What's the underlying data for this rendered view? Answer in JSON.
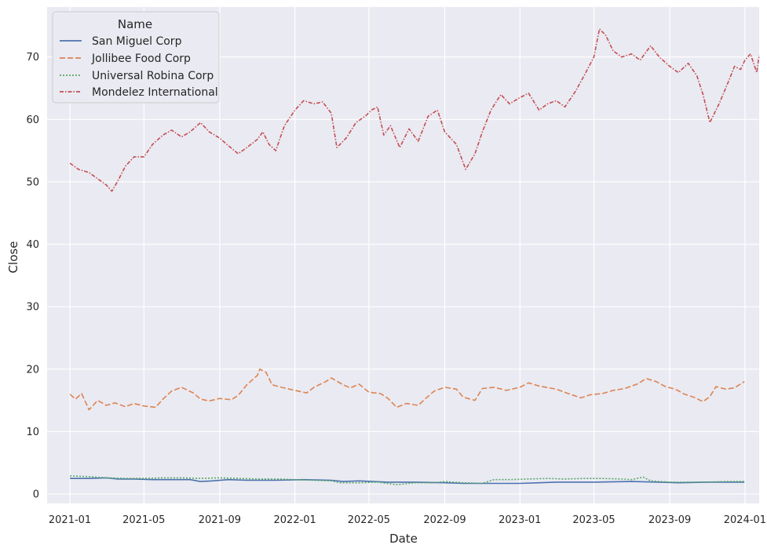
{
  "chart_data": {
    "type": "line",
    "title": "",
    "xlabel": "Date",
    "ylabel": "Close",
    "x_range": [
      "2020-11-25",
      "2024-01-24"
    ],
    "ylim": [
      -1.5,
      78
    ],
    "grid": true,
    "background": "#eaeaf2",
    "legend": {
      "title": "Name",
      "placement": "top-left"
    },
    "x_ticks": [
      "2021-01",
      "2021-05",
      "2021-09",
      "2022-01",
      "2022-05",
      "2022-09",
      "2023-01",
      "2023-05",
      "2023-09",
      "2024-01"
    ],
    "y_ticks": [
      0,
      10,
      20,
      30,
      40,
      50,
      60,
      70
    ],
    "series": [
      {
        "name": "San Miguel Corp",
        "color": "#4c72b0",
        "dash": "solid",
        "points": [
          [
            "2021-01-01",
            2.5
          ],
          [
            "2021-02-01",
            2.5
          ],
          [
            "2021-03-01",
            2.6
          ],
          [
            "2021-03-20",
            2.4
          ],
          [
            "2021-04-15",
            2.4
          ],
          [
            "2021-05-15",
            2.3
          ],
          [
            "2021-06-15",
            2.3
          ],
          [
            "2021-07-15",
            2.3
          ],
          [
            "2021-08-01",
            2.0
          ],
          [
            "2021-08-20",
            2.1
          ],
          [
            "2021-09-15",
            2.3
          ],
          [
            "2021-10-15",
            2.2
          ],
          [
            "2021-12-01",
            2.2
          ],
          [
            "2022-01-15",
            2.3
          ],
          [
            "2022-03-01",
            2.2
          ],
          [
            "2022-03-20",
            2.0
          ],
          [
            "2022-04-15",
            2.1
          ],
          [
            "2022-06-01",
            1.9
          ],
          [
            "2022-07-15",
            1.9
          ],
          [
            "2022-09-01",
            1.8
          ],
          [
            "2022-10-01",
            1.7
          ],
          [
            "2022-11-15",
            1.7
          ],
          [
            "2023-01-01",
            1.7
          ],
          [
            "2023-02-01",
            1.8
          ],
          [
            "2023-03-01",
            1.9
          ],
          [
            "2023-05-01",
            1.9
          ],
          [
            "2023-07-01",
            2.0
          ],
          [
            "2023-08-15",
            1.9
          ],
          [
            "2023-09-15",
            1.8
          ],
          [
            "2023-11-01",
            1.9
          ],
          [
            "2023-12-31",
            1.9
          ]
        ]
      },
      {
        "name": "Jollibee Food Corp",
        "color": "#dd8452",
        "dash": "dashed",
        "points": [
          [
            "2021-01-01",
            16.0
          ],
          [
            "2021-01-10",
            15.2
          ],
          [
            "2021-01-20",
            16.1
          ],
          [
            "2021-02-01",
            13.5
          ],
          [
            "2021-02-15",
            15.0
          ],
          [
            "2021-03-01",
            14.2
          ],
          [
            "2021-03-15",
            14.6
          ],
          [
            "2021-04-01",
            14.0
          ],
          [
            "2021-04-15",
            14.5
          ],
          [
            "2021-05-01",
            14.1
          ],
          [
            "2021-05-20",
            13.9
          ],
          [
            "2021-06-01",
            15.2
          ],
          [
            "2021-06-15",
            16.5
          ],
          [
            "2021-07-01",
            17.1
          ],
          [
            "2021-07-20",
            16.2
          ],
          [
            "2021-08-01",
            15.2
          ],
          [
            "2021-08-15",
            14.9
          ],
          [
            "2021-09-01",
            15.3
          ],
          [
            "2021-09-20",
            15.1
          ],
          [
            "2021-10-01",
            15.8
          ],
          [
            "2021-10-15",
            17.5
          ],
          [
            "2021-11-01",
            19.0
          ],
          [
            "2021-11-05",
            20.0
          ],
          [
            "2021-11-15",
            19.5
          ],
          [
            "2021-11-25",
            17.5
          ],
          [
            "2021-12-10",
            17.1
          ],
          [
            "2022-01-01",
            16.6
          ],
          [
            "2022-01-20",
            16.2
          ],
          [
            "2022-02-01",
            17.1
          ],
          [
            "2022-02-20",
            18.0
          ],
          [
            "2022-03-01",
            18.6
          ],
          [
            "2022-03-20",
            17.5
          ],
          [
            "2022-04-01",
            17.0
          ],
          [
            "2022-04-15",
            17.6
          ],
          [
            "2022-05-01",
            16.3
          ],
          [
            "2022-05-20",
            16.1
          ],
          [
            "2022-06-01",
            15.3
          ],
          [
            "2022-06-15",
            13.9
          ],
          [
            "2022-07-01",
            14.5
          ],
          [
            "2022-07-20",
            14.2
          ],
          [
            "2022-08-01",
            15.3
          ],
          [
            "2022-08-15",
            16.5
          ],
          [
            "2022-09-01",
            17.1
          ],
          [
            "2022-09-20",
            16.8
          ],
          [
            "2022-10-01",
            15.5
          ],
          [
            "2022-10-20",
            15.0
          ],
          [
            "2022-11-01",
            16.9
          ],
          [
            "2022-11-20",
            17.1
          ],
          [
            "2022-12-10",
            16.6
          ],
          [
            "2023-01-01",
            17.1
          ],
          [
            "2023-01-15",
            17.8
          ],
          [
            "2023-02-01",
            17.3
          ],
          [
            "2023-03-01",
            16.8
          ],
          [
            "2023-03-20",
            16.1
          ],
          [
            "2023-04-10",
            15.4
          ],
          [
            "2023-04-25",
            15.9
          ],
          [
            "2023-05-15",
            16.1
          ],
          [
            "2023-06-01",
            16.6
          ],
          [
            "2023-06-20",
            16.9
          ],
          [
            "2023-07-10",
            17.6
          ],
          [
            "2023-07-25",
            18.5
          ],
          [
            "2023-08-10",
            18.0
          ],
          [
            "2023-08-25",
            17.2
          ],
          [
            "2023-09-10",
            16.8
          ],
          [
            "2023-09-25",
            16.0
          ],
          [
            "2023-10-10",
            15.5
          ],
          [
            "2023-10-25",
            14.8
          ],
          [
            "2023-11-05",
            15.6
          ],
          [
            "2023-11-15",
            17.2
          ],
          [
            "2023-12-01",
            16.8
          ],
          [
            "2023-12-15",
            17.0
          ],
          [
            "2023-12-31",
            18.0
          ]
        ]
      },
      {
        "name": "Universal Robina Corp",
        "color": "#55a868",
        "dash": "dotted",
        "points": [
          [
            "2021-01-01",
            2.9
          ],
          [
            "2021-02-01",
            2.8
          ],
          [
            "2021-03-01",
            2.6
          ],
          [
            "2021-04-01",
            2.5
          ],
          [
            "2021-05-01",
            2.5
          ],
          [
            "2021-06-01",
            2.6
          ],
          [
            "2021-07-01",
            2.6
          ],
          [
            "2021-08-01",
            2.5
          ],
          [
            "2021-09-01",
            2.6
          ],
          [
            "2021-10-01",
            2.5
          ],
          [
            "2021-11-01",
            2.4
          ],
          [
            "2021-12-01",
            2.4
          ],
          [
            "2022-01-01",
            2.3
          ],
          [
            "2022-02-01",
            2.2
          ],
          [
            "2022-03-01",
            2.1
          ],
          [
            "2022-03-15",
            1.8
          ],
          [
            "2022-04-15",
            1.8
          ],
          [
            "2022-05-15",
            1.9
          ],
          [
            "2022-06-15",
            1.5
          ],
          [
            "2022-07-15",
            1.8
          ],
          [
            "2022-08-15",
            1.8
          ],
          [
            "2022-09-01",
            2.0
          ],
          [
            "2022-10-01",
            1.8
          ],
          [
            "2022-11-01",
            1.7
          ],
          [
            "2022-11-20",
            2.3
          ],
          [
            "2022-12-15",
            2.3
          ],
          [
            "2023-01-15",
            2.4
          ],
          [
            "2023-02-15",
            2.5
          ],
          [
            "2023-03-15",
            2.4
          ],
          [
            "2023-04-15",
            2.5
          ],
          [
            "2023-05-15",
            2.5
          ],
          [
            "2023-06-15",
            2.4
          ],
          [
            "2023-07-01",
            2.3
          ],
          [
            "2023-07-20",
            2.7
          ],
          [
            "2023-08-01",
            2.1
          ],
          [
            "2023-09-01",
            1.9
          ],
          [
            "2023-10-01",
            1.9
          ],
          [
            "2023-11-01",
            1.9
          ],
          [
            "2023-12-01",
            2.0
          ],
          [
            "2023-12-31",
            2.0
          ]
        ]
      },
      {
        "name": "Mondelez International",
        "color": "#c44e52",
        "dash": "dashdot",
        "points": [
          [
            "2021-01-01",
            53.0
          ],
          [
            "2021-01-15",
            52.0
          ],
          [
            "2021-02-01",
            51.5
          ],
          [
            "2021-02-15",
            50.5
          ],
          [
            "2021-03-01",
            49.5
          ],
          [
            "2021-03-10",
            48.5
          ],
          [
            "2021-03-20",
            50.2
          ],
          [
            "2021-04-01",
            52.5
          ],
          [
            "2021-04-15",
            54.0
          ],
          [
            "2021-05-01",
            54.0
          ],
          [
            "2021-05-15",
            56.0
          ],
          [
            "2021-06-01",
            57.5
          ],
          [
            "2021-06-15",
            58.3
          ],
          [
            "2021-07-01",
            57.2
          ],
          [
            "2021-07-15",
            58.0
          ],
          [
            "2021-08-01",
            59.5
          ],
          [
            "2021-08-15",
            58.0
          ],
          [
            "2021-09-01",
            57.0
          ],
          [
            "2021-09-15",
            55.8
          ],
          [
            "2021-10-01",
            54.5
          ],
          [
            "2021-10-15",
            55.5
          ],
          [
            "2021-11-01",
            56.8
          ],
          [
            "2021-11-10",
            58.0
          ],
          [
            "2021-11-20",
            56.0
          ],
          [
            "2021-12-01",
            55.0
          ],
          [
            "2021-12-15",
            59.0
          ],
          [
            "2022-01-01",
            61.5
          ],
          [
            "2022-01-15",
            63.0
          ],
          [
            "2022-02-01",
            62.5
          ],
          [
            "2022-02-15",
            62.8
          ],
          [
            "2022-03-01",
            61.0
          ],
          [
            "2022-03-10",
            55.5
          ],
          [
            "2022-03-25",
            57.0
          ],
          [
            "2022-04-10",
            59.5
          ],
          [
            "2022-04-25",
            60.5
          ],
          [
            "2022-05-05",
            61.5
          ],
          [
            "2022-05-15",
            62.0
          ],
          [
            "2022-05-25",
            57.5
          ],
          [
            "2022-06-05",
            59.0
          ],
          [
            "2022-06-20",
            55.5
          ],
          [
            "2022-07-05",
            58.5
          ],
          [
            "2022-07-20",
            56.5
          ],
          [
            "2022-08-05",
            60.5
          ],
          [
            "2022-08-20",
            61.5
          ],
          [
            "2022-09-01",
            58.0
          ],
          [
            "2022-09-20",
            56.0
          ],
          [
            "2022-10-05",
            52.0
          ],
          [
            "2022-10-20",
            54.5
          ],
          [
            "2022-11-01",
            58.0
          ],
          [
            "2022-11-15",
            61.5
          ],
          [
            "2022-12-01",
            64.0
          ],
          [
            "2022-12-15",
            62.5
          ],
          [
            "2023-01-01",
            63.5
          ],
          [
            "2023-01-15",
            64.2
          ],
          [
            "2023-02-01",
            61.5
          ],
          [
            "2023-02-15",
            62.5
          ],
          [
            "2023-03-01",
            63.0
          ],
          [
            "2023-03-15",
            62.0
          ],
          [
            "2023-04-01",
            64.5
          ],
          [
            "2023-04-15",
            67.0
          ],
          [
            "2023-05-01",
            70.0
          ],
          [
            "2023-05-10",
            74.5
          ],
          [
            "2023-05-20",
            73.5
          ],
          [
            "2023-06-01",
            71.0
          ],
          [
            "2023-06-15",
            70.0
          ],
          [
            "2023-07-01",
            70.5
          ],
          [
            "2023-07-15",
            69.5
          ],
          [
            "2023-08-01",
            71.8
          ],
          [
            "2023-08-15",
            70.0
          ],
          [
            "2023-09-01",
            68.5
          ],
          [
            "2023-09-15",
            67.5
          ],
          [
            "2023-10-01",
            69.0
          ],
          [
            "2023-10-15",
            67.0
          ],
          [
            "2023-10-25",
            64.0
          ],
          [
            "2023-11-05",
            59.5
          ],
          [
            "2023-11-20",
            62.5
          ],
          [
            "2023-12-05",
            66.0
          ],
          [
            "2023-12-15",
            68.5
          ],
          [
            "2023-12-25",
            68.0
          ],
          [
            "2024-01-01",
            69.5
          ],
          [
            "2024-01-10",
            70.5
          ],
          [
            "2024-01-20",
            67.5
          ],
          [
            "2024-01-24",
            70.3
          ]
        ]
      }
    ]
  }
}
